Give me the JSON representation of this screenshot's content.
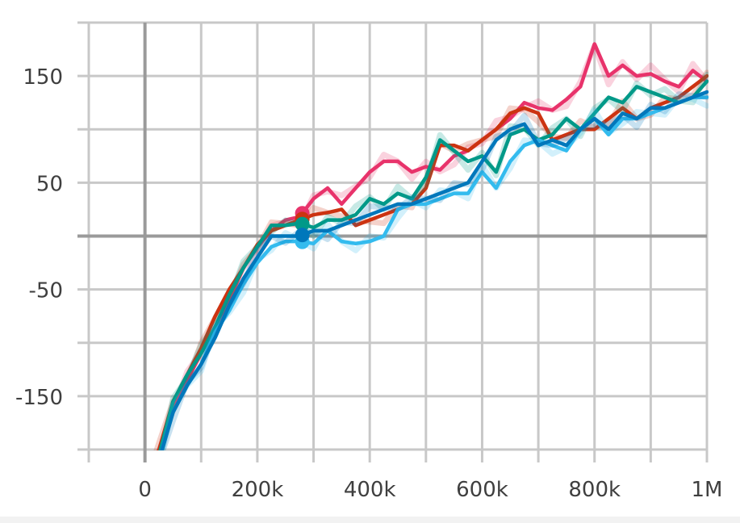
{
  "chart_data": {
    "type": "line",
    "xlim": [
      -100000,
      1000000
    ],
    "ylim": [
      -200,
      200
    ],
    "x_ticks": [
      0,
      200000,
      400000,
      600000,
      800000,
      1000000
    ],
    "x_tick_labels": [
      "0",
      "200k",
      "400k",
      "600k",
      "800k",
      "1M"
    ],
    "y_ticks": [
      150,
      50,
      -50,
      -150
    ],
    "y_tick_labels": [
      "150",
      "50",
      "-50",
      "-150"
    ],
    "grid": true,
    "legend": "none",
    "highlight_x": 280000,
    "series": [
      {
        "color": "#e8336b",
        "x": [
          0,
          25000,
          50000,
          75000,
          100000,
          125000,
          150000,
          175000,
          200000,
          225000,
          250000,
          275000,
          300000,
          325000,
          350000,
          375000,
          400000,
          425000,
          450000,
          475000,
          500000,
          525000,
          550000,
          575000,
          600000,
          625000,
          650000,
          675000,
          700000,
          725000,
          750000,
          775000,
          800000,
          825000,
          850000,
          875000,
          900000,
          925000,
          950000,
          975000,
          1000000
        ],
        "y": [
          -230,
          -205,
          -160,
          -135,
          -110,
          -85,
          -60,
          -30,
          -10,
          5,
          15,
          18,
          35,
          45,
          30,
          45,
          60,
          70,
          70,
          60,
          65,
          62,
          75,
          80,
          90,
          100,
          110,
          125,
          120,
          118,
          128,
          140,
          180,
          150,
          160,
          150,
          152,
          145,
          140,
          155,
          145
        ]
      },
      {
        "color": "#cc3311",
        "x": [
          0,
          25000,
          50000,
          75000,
          100000,
          125000,
          150000,
          175000,
          200000,
          225000,
          250000,
          275000,
          300000,
          325000,
          350000,
          375000,
          400000,
          425000,
          450000,
          475000,
          500000,
          525000,
          550000,
          575000,
          600000,
          625000,
          650000,
          675000,
          700000,
          725000,
          750000,
          775000,
          800000,
          825000,
          850000,
          875000,
          900000,
          925000,
          950000,
          975000,
          1000000
        ],
        "y": [
          -230,
          -200,
          -155,
          -130,
          -105,
          -75,
          -50,
          -30,
          -8,
          5,
          10,
          15,
          20,
          22,
          25,
          10,
          15,
          20,
          25,
          30,
          45,
          85,
          85,
          80,
          90,
          100,
          115,
          120,
          115,
          90,
          95,
          100,
          100,
          110,
          120,
          110,
          120,
          125,
          130,
          140,
          150
        ]
      },
      {
        "color": "#009988",
        "x": [
          0,
          25000,
          50000,
          75000,
          100000,
          125000,
          150000,
          175000,
          200000,
          225000,
          250000,
          275000,
          300000,
          325000,
          350000,
          375000,
          400000,
          425000,
          450000,
          475000,
          500000,
          525000,
          550000,
          575000,
          600000,
          625000,
          650000,
          675000,
          700000,
          725000,
          750000,
          775000,
          800000,
          825000,
          850000,
          875000,
          900000,
          925000,
          950000,
          975000,
          1000000
        ],
        "y": [
          -230,
          -205,
          -155,
          -130,
          -110,
          -85,
          -55,
          -30,
          -10,
          10,
          10,
          12,
          8,
          15,
          15,
          20,
          35,
          30,
          40,
          35,
          55,
          90,
          80,
          70,
          75,
          60,
          95,
          100,
          90,
          95,
          110,
          100,
          115,
          130,
          125,
          140,
          135,
          130,
          125,
          130,
          145
        ]
      },
      {
        "color": "#33bbee",
        "x": [
          0,
          25000,
          50000,
          75000,
          100000,
          125000,
          150000,
          175000,
          200000,
          225000,
          250000,
          275000,
          300000,
          325000,
          350000,
          375000,
          400000,
          425000,
          450000,
          475000,
          500000,
          525000,
          550000,
          575000,
          600000,
          625000,
          650000,
          675000,
          700000,
          725000,
          750000,
          775000,
          800000,
          825000,
          850000,
          875000,
          900000,
          925000,
          950000,
          975000,
          1000000
        ],
        "y": [
          -230,
          -210,
          -165,
          -140,
          -120,
          -90,
          -70,
          -45,
          -25,
          -10,
          -5,
          -5,
          -7,
          5,
          -5,
          -7,
          -5,
          0,
          25,
          30,
          30,
          35,
          40,
          40,
          60,
          45,
          70,
          85,
          90,
          85,
          80,
          100,
          110,
          95,
          110,
          110,
          115,
          120,
          125,
          130,
          130
        ]
      },
      {
        "color": "#0077bb",
        "x": [
          0,
          25000,
          50000,
          75000,
          100000,
          125000,
          150000,
          175000,
          200000,
          225000,
          250000,
          275000,
          300000,
          325000,
          350000,
          375000,
          400000,
          425000,
          450000,
          475000,
          500000,
          525000,
          550000,
          575000,
          600000,
          625000,
          650000,
          675000,
          700000,
          725000,
          750000,
          775000,
          800000,
          825000,
          850000,
          875000,
          900000,
          925000,
          950000,
          975000,
          1000000
        ],
        "y": [
          -230,
          -210,
          -165,
          -140,
          -120,
          -95,
          -65,
          -40,
          -20,
          0,
          0,
          0,
          5,
          5,
          10,
          15,
          20,
          25,
          30,
          30,
          35,
          40,
          45,
          50,
          70,
          90,
          100,
          105,
          85,
          90,
          85,
          100,
          110,
          100,
          115,
          110,
          120,
          120,
          125,
          130,
          135
        ]
      }
    ]
  }
}
